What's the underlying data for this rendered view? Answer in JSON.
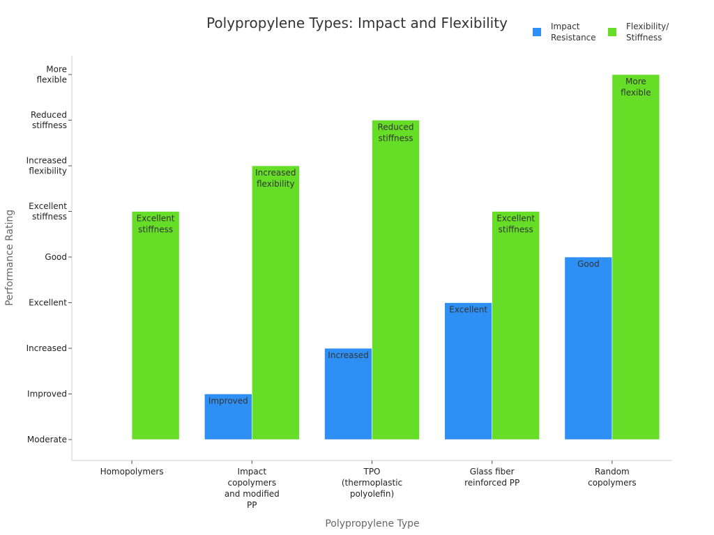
{
  "chart_data": {
    "type": "bar",
    "title": "Polypropylene Types: Impact and Flexibility",
    "xlabel": "Polypropylene Type",
    "ylabel": "Performance Rating",
    "categories": [
      [
        "Homopolymers"
      ],
      [
        "Impact",
        "copolymers",
        "and modified",
        "PP"
      ],
      [
        "TPO",
        "(thermoplastic",
        "polyolefin)"
      ],
      [
        "Glass fiber",
        "reinforced PP"
      ],
      [
        "Random",
        "copolymers"
      ]
    ],
    "y_levels": [
      [
        "Moderate"
      ],
      [
        "Improved"
      ],
      [
        "Increased"
      ],
      [
        "Excellent"
      ],
      [
        "Good"
      ],
      [
        "Excellent",
        "stiffness"
      ],
      [
        "Increased",
        "flexibility"
      ],
      [
        "Reduced",
        "stiffness"
      ],
      [
        "More",
        "flexible"
      ]
    ],
    "ylim": [
      0,
      8.45
    ],
    "legend_position": "top-right",
    "series": [
      {
        "name": [
          "Impact",
          "Resistance"
        ],
        "color": "#2e90f5",
        "values": [
          0,
          1,
          2,
          3,
          4
        ],
        "labels": [
          [],
          [
            "Improved"
          ],
          [
            "Increased"
          ],
          [
            "Excellent"
          ],
          [
            "Good"
          ]
        ]
      },
      {
        "name": [
          "Flexibility/",
          "Stiffness"
        ],
        "color": "#66dd27",
        "values": [
          5,
          6,
          7,
          5,
          8
        ],
        "labels": [
          [
            "Excellent",
            "stiffness"
          ],
          [
            "Increased",
            "flexibility"
          ],
          [
            "Reduced",
            "stiffness"
          ],
          [
            "Excellent",
            "stiffness"
          ],
          [
            "More",
            "flexible"
          ]
        ]
      }
    ]
  }
}
